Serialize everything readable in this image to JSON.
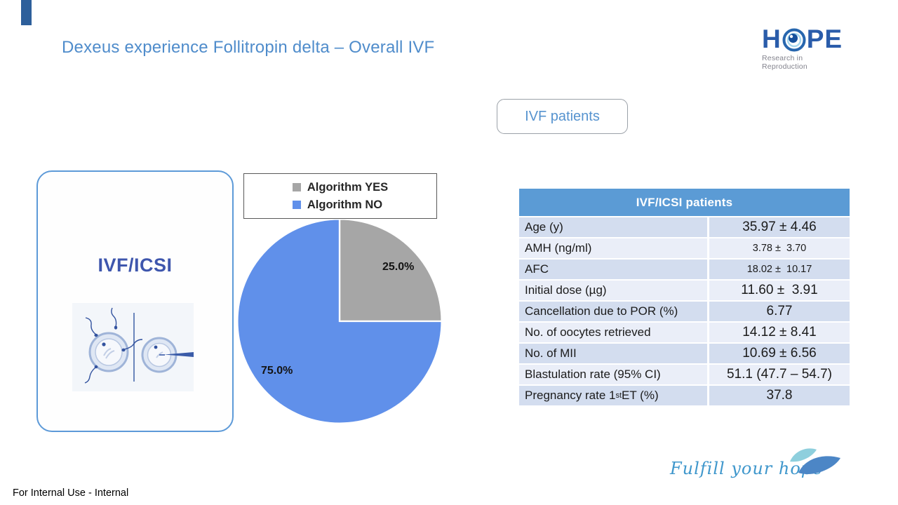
{
  "slide": {
    "title": "Dexeus experience Follitropin delta – Overall IVF",
    "footer": "For Internal Use - Internal"
  },
  "hope_logo": {
    "letter_h": "H",
    "letters_pe": "PE",
    "tagline": "Research in Reproduction"
  },
  "fulfill_logo": {
    "text": "Fulfill your hope"
  },
  "ivf_patients_button": {
    "label": "IVF patients"
  },
  "category_card": {
    "title": "IVF/ICSI"
  },
  "chart_data": {
    "type": "pie",
    "labels": [
      "Algorithm YES",
      "Algorithm NO"
    ],
    "values": [
      25.0,
      75.0
    ],
    "slice_labels": [
      "25.0%",
      "75.0%"
    ],
    "colors": [
      "#a6a6a6",
      "#6090ea"
    ],
    "legend_position": "top",
    "start_angle_deg": -90,
    "direction": "clockwise"
  },
  "table": {
    "header": "IVF/ICSI patients",
    "rows": [
      {
        "label": "Age (y)",
        "value": "35.97 ± 4.46"
      },
      {
        "label": "AMH (ng/ml)",
        "value": "3.78 ±  3.70"
      },
      {
        "label": "AFC",
        "value": "18.02 ±  10.17"
      },
      {
        "label": "Initial dose (µg)",
        "value": "11.60 ±  3.91"
      },
      {
        "label": "Cancellation due to POR (%)",
        "value": "6.77"
      },
      {
        "label": "No. of oocytes retrieved",
        "value": "14.12 ± 8.41"
      },
      {
        "label": "No. of MII",
        "value": "10.69 ± 6.56"
      },
      {
        "label": "Blastulation rate (95% CI)",
        "value": "51.1 (47.7 – 54.7)"
      },
      {
        "label_parts": [
          "Pregnancy rate 1",
          "st",
          " ET (%)"
        ],
        "value": "37.8"
      }
    ]
  },
  "colors": {
    "accent_bar": "#2d5f9b",
    "title_blue": "#4f8ccb",
    "table_header_blue": "#5b9bd5",
    "row_dark": "#d3ddef",
    "row_light": "#eaeef8",
    "card_border_blue": "#5d9ad8",
    "card_title_blue": "#3e56ad",
    "hope_blue": "#2a5caa",
    "fulfill_blue": "#3f97cc"
  }
}
